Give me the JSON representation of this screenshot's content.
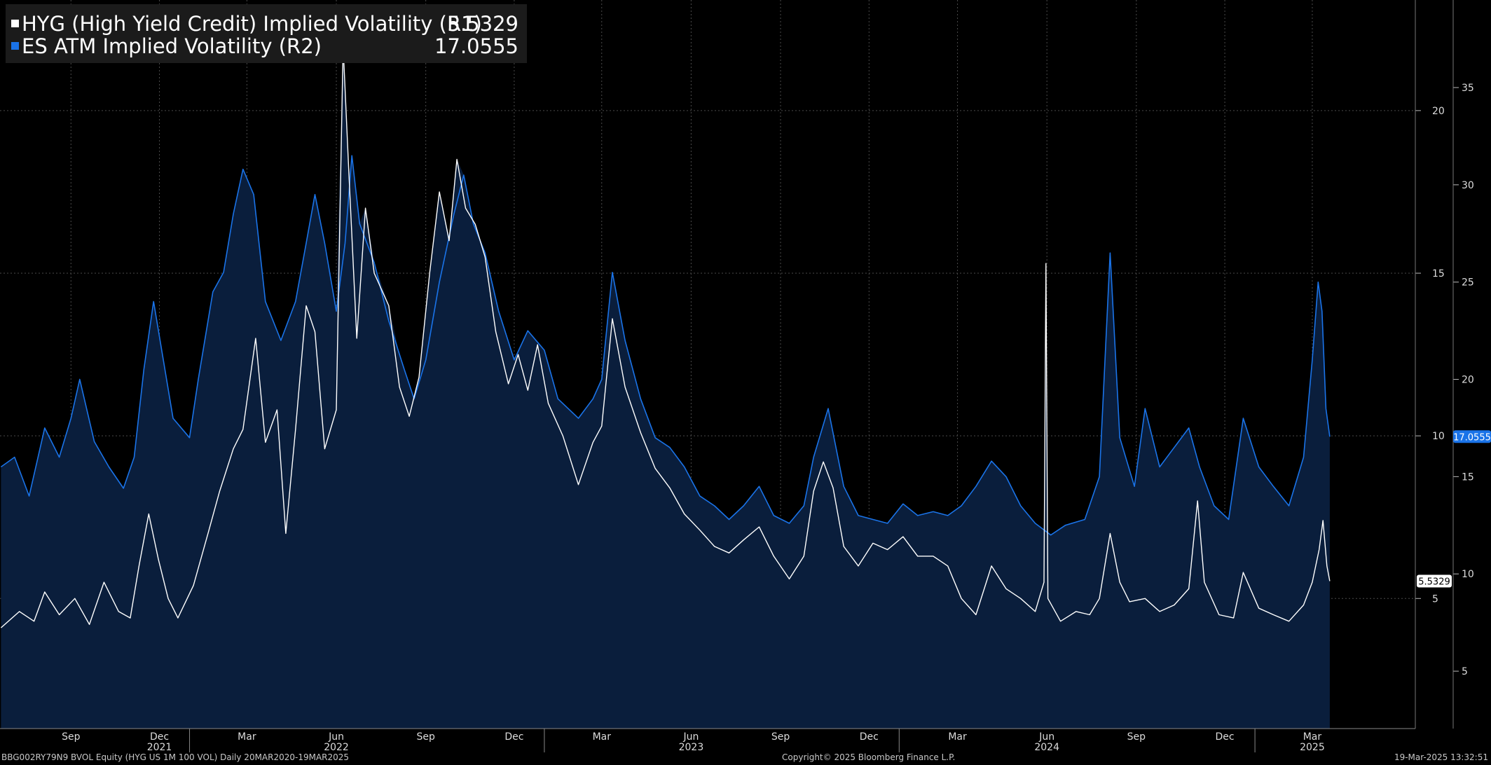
{
  "legend": [
    {
      "label": "HYG (High Yield Credit) Implied Volatility (R1)",
      "value": "5.5329",
      "color": "#ffffff"
    },
    {
      "label": "ES ATM Implied Volatility (R2)",
      "value": "17.0555",
      "color": "#1a73e8"
    }
  ],
  "footer": {
    "left": "BBG002RY79N9 BVOL Equity (HYG US 1M 100 VOL)  Daily 20MAR2020-19MAR2025",
    "center": "Copyright© 2025 Bloomberg Finance L.P.",
    "right": "19-Mar-2025 13:32:51"
  },
  "chart_data": {
    "type": "line",
    "x_axis": {
      "month_labels": [
        "Sep",
        "Dec",
        "Mar",
        "Jun",
        "Sep",
        "Dec",
        "Mar",
        "Jun",
        "Sep",
        "Dec",
        "Mar",
        "Jun",
        "Sep",
        "Dec",
        "Mar"
      ],
      "month_dates": [
        "2021-09-01",
        "2021-12-01",
        "2022-03-01",
        "2022-06-01",
        "2022-09-01",
        "2022-12-01",
        "2023-03-01",
        "2023-06-01",
        "2023-09-01",
        "2023-12-01",
        "2024-03-01",
        "2024-06-01",
        "2024-09-01",
        "2024-12-01",
        "2025-03-01"
      ],
      "year_labels": [
        "2021",
        "2022",
        "2023",
        "2024",
        "2025"
      ],
      "year_dates": [
        "2021-12-01",
        "2022-06-01",
        "2023-06-01",
        "2024-06-01",
        "2025-03-01"
      ],
      "range": [
        "2021-06-20",
        "2025-06-15"
      ]
    },
    "axis_r1": {
      "ticks": [
        5,
        10,
        15,
        20
      ],
      "range": [
        1,
        23.4
      ]
    },
    "axis_r2": {
      "ticks": [
        5,
        10,
        15,
        20,
        25,
        30,
        35
      ],
      "range": [
        2.05,
        39.5
      ]
    },
    "series": [
      {
        "name": "HYG (High Yield Credit) Implied Volatility (R1)",
        "axis": "R1",
        "color": "#ffffff",
        "last_value": 5.5329,
        "points": [
          [
            "2021-06-21",
            4.1
          ],
          [
            "2021-07-10",
            4.6
          ],
          [
            "2021-07-25",
            4.3
          ],
          [
            "2021-08-05",
            5.2
          ],
          [
            "2021-08-20",
            4.5
          ],
          [
            "2021-09-05",
            5.0
          ],
          [
            "2021-09-20",
            4.2
          ],
          [
            "2021-10-05",
            5.5
          ],
          [
            "2021-10-20",
            4.6
          ],
          [
            "2021-11-01",
            4.4
          ],
          [
            "2021-11-10",
            6.0
          ],
          [
            "2021-11-20",
            7.6
          ],
          [
            "2021-11-30",
            6.2
          ],
          [
            "2021-12-10",
            5.0
          ],
          [
            "2021-12-20",
            4.4
          ],
          [
            "2022-01-05",
            5.4
          ],
          [
            "2022-01-20",
            7.0
          ],
          [
            "2022-02-01",
            8.3
          ],
          [
            "2022-02-15",
            9.6
          ],
          [
            "2022-02-25",
            10.2
          ],
          [
            "2022-03-10",
            13.0
          ],
          [
            "2022-03-20",
            9.8
          ],
          [
            "2022-04-01",
            10.8
          ],
          [
            "2022-04-10",
            7.0
          ],
          [
            "2022-04-20",
            10.2
          ],
          [
            "2022-05-01",
            14.0
          ],
          [
            "2022-05-10",
            13.2
          ],
          [
            "2022-05-20",
            9.6
          ],
          [
            "2022-06-01",
            10.8
          ],
          [
            "2022-06-08",
            22.0
          ],
          [
            "2022-06-14",
            18.0
          ],
          [
            "2022-06-22",
            13.0
          ],
          [
            "2022-07-01",
            17.0
          ],
          [
            "2022-07-10",
            15.0
          ],
          [
            "2022-07-25",
            14.0
          ],
          [
            "2022-08-05",
            11.5
          ],
          [
            "2022-08-15",
            10.6
          ],
          [
            "2022-08-25",
            11.8
          ],
          [
            "2022-09-05",
            15.0
          ],
          [
            "2022-09-15",
            17.5
          ],
          [
            "2022-09-25",
            16.0
          ],
          [
            "2022-10-03",
            18.5
          ],
          [
            "2022-10-12",
            17.0
          ],
          [
            "2022-10-22",
            16.5
          ],
          [
            "2022-11-01",
            15.5
          ],
          [
            "2022-11-12",
            13.2
          ],
          [
            "2022-11-25",
            11.6
          ],
          [
            "2022-12-05",
            12.5
          ],
          [
            "2022-12-15",
            11.4
          ],
          [
            "2022-12-25",
            12.8
          ],
          [
            "2023-01-05",
            11.0
          ],
          [
            "2023-01-20",
            10.0
          ],
          [
            "2023-02-05",
            8.5
          ],
          [
            "2023-02-20",
            9.8
          ],
          [
            "2023-03-01",
            10.3
          ],
          [
            "2023-03-12",
            13.6
          ],
          [
            "2023-03-25",
            11.5
          ],
          [
            "2023-04-10",
            10.1
          ],
          [
            "2023-04-25",
            9.0
          ],
          [
            "2023-05-10",
            8.4
          ],
          [
            "2023-05-25",
            7.6
          ],
          [
            "2023-06-10",
            7.1
          ],
          [
            "2023-06-25",
            6.6
          ],
          [
            "2023-07-10",
            6.4
          ],
          [
            "2023-07-25",
            6.8
          ],
          [
            "2023-08-10",
            7.2
          ],
          [
            "2023-08-25",
            6.3
          ],
          [
            "2023-09-10",
            5.6
          ],
          [
            "2023-09-25",
            6.3
          ],
          [
            "2023-10-05",
            8.3
          ],
          [
            "2023-10-15",
            9.2
          ],
          [
            "2023-10-25",
            8.4
          ],
          [
            "2023-11-05",
            6.6
          ],
          [
            "2023-11-20",
            6.0
          ],
          [
            "2023-12-05",
            6.7
          ],
          [
            "2023-12-20",
            6.5
          ],
          [
            "2024-01-05",
            6.9
          ],
          [
            "2024-01-20",
            6.3
          ],
          [
            "2024-02-05",
            6.3
          ],
          [
            "2024-02-20",
            6.0
          ],
          [
            "2024-03-05",
            5.0
          ],
          [
            "2024-03-20",
            4.5
          ],
          [
            "2024-04-05",
            6.0
          ],
          [
            "2024-04-20",
            5.3
          ],
          [
            "2024-05-05",
            5.0
          ],
          [
            "2024-05-20",
            4.6
          ],
          [
            "2024-05-29",
            5.5
          ],
          [
            "2024-05-31",
            15.3
          ],
          [
            "2024-06-02",
            5.0
          ],
          [
            "2024-06-15",
            4.3
          ],
          [
            "2024-07-01",
            4.6
          ],
          [
            "2024-07-15",
            4.5
          ],
          [
            "2024-07-25",
            5.0
          ],
          [
            "2024-08-05",
            7.0
          ],
          [
            "2024-08-15",
            5.5
          ],
          [
            "2024-08-25",
            4.9
          ],
          [
            "2024-09-10",
            5.0
          ],
          [
            "2024-09-25",
            4.6
          ],
          [
            "2024-10-10",
            4.8
          ],
          [
            "2024-10-25",
            5.3
          ],
          [
            "2024-11-03",
            8.0
          ],
          [
            "2024-11-10",
            5.5
          ],
          [
            "2024-11-25",
            4.5
          ],
          [
            "2024-12-10",
            4.4
          ],
          [
            "2024-12-20",
            5.8
          ],
          [
            "2025-01-05",
            4.7
          ],
          [
            "2025-01-20",
            4.5
          ],
          [
            "2025-02-05",
            4.3
          ],
          [
            "2025-02-20",
            4.8
          ],
          [
            "2025-03-01",
            5.5
          ],
          [
            "2025-03-08",
            6.5
          ],
          [
            "2025-03-12",
            7.4
          ],
          [
            "2025-03-16",
            6.0
          ],
          [
            "2025-03-19",
            5.5329
          ]
        ]
      },
      {
        "name": "ES ATM Implied Volatility (R2)",
        "axis": "R2",
        "color": "#1a73e8",
        "last_value": 17.0555,
        "points": [
          [
            "2021-06-21",
            15.5
          ],
          [
            "2021-07-05",
            16.0
          ],
          [
            "2021-07-20",
            14.0
          ],
          [
            "2021-08-05",
            17.5
          ],
          [
            "2021-08-20",
            16.0
          ],
          [
            "2021-09-01",
            18.0
          ],
          [
            "2021-09-10",
            20.0
          ],
          [
            "2021-09-25",
            16.8
          ],
          [
            "2021-10-10",
            15.5
          ],
          [
            "2021-10-25",
            14.4
          ],
          [
            "2021-11-05",
            16.0
          ],
          [
            "2021-11-15",
            20.5
          ],
          [
            "2021-11-25",
            24.0
          ],
          [
            "2021-12-05",
            21.0
          ],
          [
            "2021-12-15",
            18.0
          ],
          [
            "2022-01-01",
            17.0
          ],
          [
            "2022-01-10",
            20.0
          ],
          [
            "2022-01-25",
            24.5
          ],
          [
            "2022-02-05",
            25.5
          ],
          [
            "2022-02-15",
            28.5
          ],
          [
            "2022-02-25",
            30.8
          ],
          [
            "2022-03-08",
            29.5
          ],
          [
            "2022-03-20",
            24.0
          ],
          [
            "2022-04-05",
            22.0
          ],
          [
            "2022-04-20",
            24.0
          ],
          [
            "2022-05-01",
            27.0
          ],
          [
            "2022-05-10",
            29.5
          ],
          [
            "2022-05-20",
            27.0
          ],
          [
            "2022-06-01",
            23.5
          ],
          [
            "2022-06-10",
            27.0
          ],
          [
            "2022-06-17",
            31.5
          ],
          [
            "2022-06-25",
            28.0
          ],
          [
            "2022-07-10",
            26.0
          ],
          [
            "2022-07-25",
            23.0
          ],
          [
            "2022-08-10",
            20.5
          ],
          [
            "2022-08-20",
            19.0
          ],
          [
            "2022-09-01",
            21.0
          ],
          [
            "2022-09-15",
            25.0
          ],
          [
            "2022-09-30",
            28.5
          ],
          [
            "2022-10-10",
            30.5
          ],
          [
            "2022-10-20",
            28.0
          ],
          [
            "2022-11-01",
            26.5
          ],
          [
            "2022-11-15",
            23.5
          ],
          [
            "2022-12-01",
            21.0
          ],
          [
            "2022-12-15",
            22.5
          ],
          [
            "2023-01-01",
            21.5
          ],
          [
            "2023-01-15",
            19.0
          ],
          [
            "2023-02-05",
            18.0
          ],
          [
            "2023-02-20",
            19.0
          ],
          [
            "2023-03-01",
            20.0
          ],
          [
            "2023-03-12",
            25.5
          ],
          [
            "2023-03-25",
            22.0
          ],
          [
            "2023-04-10",
            19.0
          ],
          [
            "2023-04-25",
            17.0
          ],
          [
            "2023-05-10",
            16.5
          ],
          [
            "2023-05-25",
            15.5
          ],
          [
            "2023-06-10",
            14.0
          ],
          [
            "2023-06-25",
            13.5
          ],
          [
            "2023-07-10",
            12.8
          ],
          [
            "2023-07-25",
            13.5
          ],
          [
            "2023-08-10",
            14.5
          ],
          [
            "2023-08-25",
            13.0
          ],
          [
            "2023-09-10",
            12.6
          ],
          [
            "2023-09-25",
            13.5
          ],
          [
            "2023-10-05",
            16.0
          ],
          [
            "2023-10-20",
            18.5
          ],
          [
            "2023-11-05",
            14.5
          ],
          [
            "2023-11-20",
            13.0
          ],
          [
            "2023-12-05",
            12.8
          ],
          [
            "2023-12-20",
            12.6
          ],
          [
            "2024-01-05",
            13.6
          ],
          [
            "2024-01-20",
            13.0
          ],
          [
            "2024-02-05",
            13.2
          ],
          [
            "2024-02-20",
            13.0
          ],
          [
            "2024-03-05",
            13.5
          ],
          [
            "2024-03-20",
            14.5
          ],
          [
            "2024-04-05",
            15.8
          ],
          [
            "2024-04-20",
            15.0
          ],
          [
            "2024-05-05",
            13.5
          ],
          [
            "2024-05-20",
            12.6
          ],
          [
            "2024-06-05",
            12.0
          ],
          [
            "2024-06-20",
            12.5
          ],
          [
            "2024-07-10",
            12.8
          ],
          [
            "2024-07-25",
            15.0
          ],
          [
            "2024-08-05",
            26.5
          ],
          [
            "2024-08-15",
            17.0
          ],
          [
            "2024-08-30",
            14.5
          ],
          [
            "2024-09-10",
            18.5
          ],
          [
            "2024-09-25",
            15.5
          ],
          [
            "2024-10-10",
            16.5
          ],
          [
            "2024-10-25",
            17.5
          ],
          [
            "2024-11-05",
            15.5
          ],
          [
            "2024-11-20",
            13.5
          ],
          [
            "2024-12-05",
            12.8
          ],
          [
            "2024-12-20",
            18.0
          ],
          [
            "2025-01-05",
            15.5
          ],
          [
            "2025-01-20",
            14.5
          ],
          [
            "2025-02-05",
            13.5
          ],
          [
            "2025-02-20",
            16.0
          ],
          [
            "2025-03-01",
            21.0
          ],
          [
            "2025-03-07",
            25.0
          ],
          [
            "2025-03-11",
            23.5
          ],
          [
            "2025-03-15",
            18.5
          ],
          [
            "2025-03-19",
            17.0555
          ]
        ]
      }
    ],
    "grid": true,
    "legend_position": "top-left",
    "plot_background": "#000000",
    "fill_color": "#0a1e3c"
  }
}
